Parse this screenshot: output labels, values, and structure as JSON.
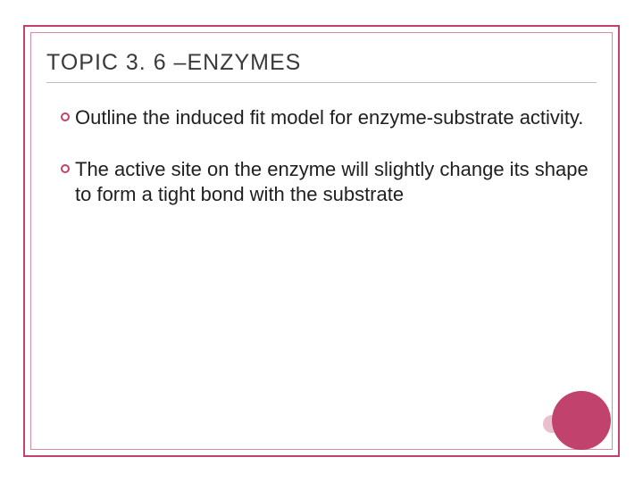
{
  "colors": {
    "accent": "#c0426d",
    "accent_light": "#d98aa6",
    "border_outer": "#c0426d",
    "border_inner": "#d98aa6",
    "text_title": "#3a3a3a",
    "text_body": "#1f1f1f",
    "underline": "#bdbdbd",
    "background": "#ffffff"
  },
  "title": {
    "prefix": "T",
    "word1": "OPIC",
    "number": " 3. 6 –",
    "word2_first": "E",
    "word2_rest": "NZYMES",
    "fontsize": 25
  },
  "bullets": [
    {
      "text": "Outline the induced fit model for enzyme-substrate activity."
    },
    {
      "text": "The active site on the enzyme will slightly change its shape to form a tight bond with the substrate"
    }
  ],
  "body_fontsize": 22,
  "decor": {
    "big_color": "#c0426d",
    "small_color": "#d98aa6"
  }
}
